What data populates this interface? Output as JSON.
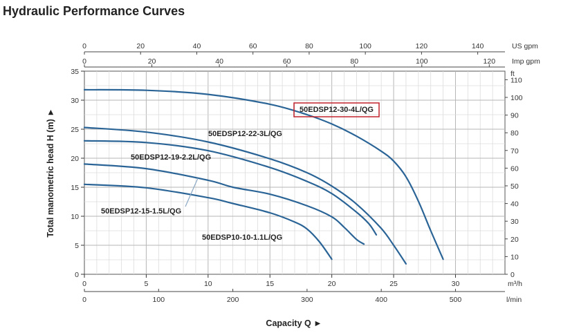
{
  "title": "Hydraulic Performance Curves",
  "chart_data": {
    "type": "line",
    "title": "Hydraulic Performance Curves",
    "xlabel": "Capacity Q ►",
    "ylabel": "Total manometric head H (m) ►",
    "x_unit": "m³/h",
    "y_unit": "m",
    "xlim": [
      0,
      34
    ],
    "ylim": [
      0,
      35
    ],
    "grid": true,
    "x_ticks": [
      0,
      5,
      10,
      15,
      20,
      25,
      30
    ],
    "y_ticks": [
      0,
      5,
      10,
      15,
      20,
      25,
      30,
      35
    ],
    "secondary_axes": {
      "lmin": {
        "unit": "l/min",
        "ticks": [
          0,
          100,
          200,
          300,
          400,
          500
        ]
      },
      "us_gpm": {
        "unit": "US gpm",
        "ticks": [
          0,
          20,
          40,
          60,
          80,
          100,
          120,
          140
        ]
      },
      "imp_gpm": {
        "unit": "Imp gpm",
        "ticks": [
          0,
          20,
          40,
          60,
          80,
          100,
          120
        ]
      },
      "ft": {
        "unit": "ft",
        "ticks": [
          0,
          10,
          20,
          30,
          40,
          50,
          60,
          70,
          80,
          90,
          100,
          110
        ]
      }
    },
    "series": [
      {
        "name": "50EDSP12-30-4L/QG",
        "highlighted": true,
        "points": [
          [
            0,
            31.8
          ],
          [
            5,
            31.7
          ],
          [
            10,
            31.0
          ],
          [
            15,
            29.3
          ],
          [
            18,
            27.5
          ],
          [
            20,
            25.9
          ],
          [
            22,
            23.8
          ],
          [
            24,
            21.2
          ],
          [
            25,
            19.5
          ],
          [
            26,
            16.8
          ],
          [
            27,
            12.6
          ],
          [
            28,
            7.5
          ],
          [
            29,
            2.6
          ]
        ]
      },
      {
        "name": "50EDSP12-22-3L/QG",
        "points": [
          [
            0,
            25.3
          ],
          [
            5,
            24.5
          ],
          [
            10,
            22.8
          ],
          [
            15,
            19.9
          ],
          [
            18,
            17.5
          ],
          [
            20,
            15.2
          ],
          [
            22,
            12.1
          ],
          [
            24,
            7.9
          ],
          [
            25,
            5.0
          ],
          [
            26,
            1.8
          ]
        ]
      },
      {
        "name": "50EDSP12-19-2.2L/QG",
        "points": [
          [
            0,
            23.0
          ],
          [
            5,
            22.7
          ],
          [
            10,
            21.3
          ],
          [
            15,
            18.4
          ],
          [
            18,
            16.0
          ],
          [
            20,
            13.9
          ],
          [
            22,
            10.7
          ],
          [
            23,
            8.7
          ],
          [
            23.6,
            6.8
          ]
        ]
      },
      {
        "name": "50EDSP12-15-1.5L/QG",
        "points": [
          [
            0,
            19.0
          ],
          [
            5,
            18.2
          ],
          [
            10,
            16.2
          ],
          [
            12,
            15.0
          ],
          [
            15,
            13.8
          ],
          [
            18,
            11.8
          ],
          [
            20,
            9.9
          ],
          [
            21,
            8.1
          ],
          [
            22,
            6.0
          ],
          [
            22.6,
            5.2
          ]
        ]
      },
      {
        "name": "50EDSP10-10-1.1L/QG",
        "points": [
          [
            0,
            15.5
          ],
          [
            5,
            14.9
          ],
          [
            10,
            13.2
          ],
          [
            12,
            12.2
          ],
          [
            15,
            10.6
          ],
          [
            17,
            9.0
          ],
          [
            18,
            7.8
          ],
          [
            19,
            5.6
          ],
          [
            20,
            2.6
          ]
        ]
      }
    ]
  }
}
